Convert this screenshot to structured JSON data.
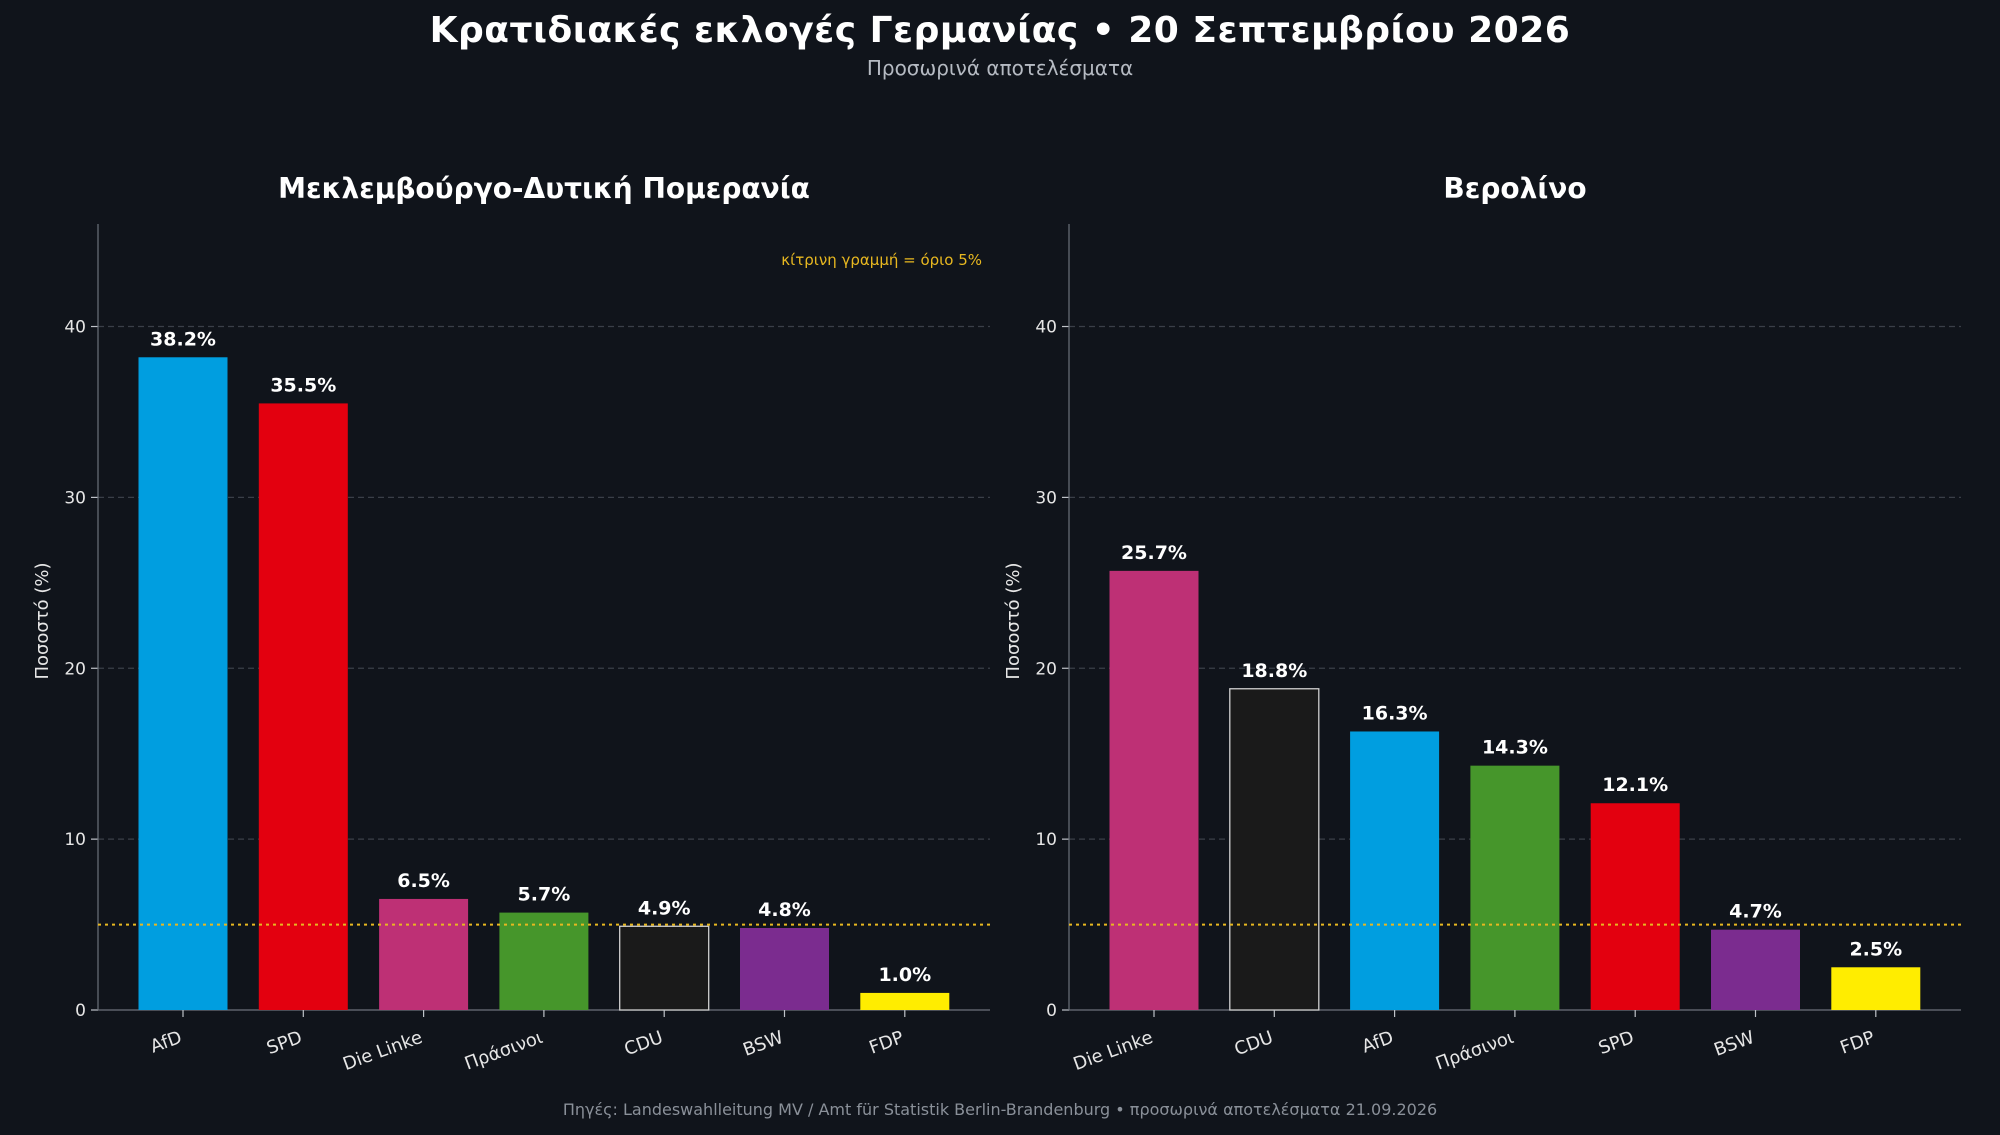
{
  "header": {
    "title": "Κρατιδιακές εκλογές Γερμανίας  •  20 Σεπτεμβρίου 2026",
    "subtitle": "Προσωρινά αποτελέσματα"
  },
  "footer": {
    "source": "Πηγές: Landeswahlleitung MV / Amt für Statistik Berlin-Brandenburg  •  προσωρινά αποτελέσματα 21.09.2026"
  },
  "colors": {
    "AfD": "#009ee0",
    "SPD": "#e3000f",
    "Die Linke": "#be3075",
    "Πράσινοι": "#46962b",
    "CDU": "#1a1a1a",
    "BSW": "#7b2c8f",
    "FDP": "#ffed00",
    "threshold": "#e8b820",
    "grid": "#3a3f48"
  },
  "chart_data": [
    {
      "type": "bar",
      "title": "Μεκλεμβούργο-Δυτική Πομερανία",
      "ylabel": "Ποσοστό (%)",
      "xlabel": "",
      "categories": [
        "AfD",
        "SPD",
        "Die Linke",
        "Πράσινοι",
        "CDU",
        "BSW",
        "FDP"
      ],
      "values": [
        38.2,
        35.5,
        6.5,
        5.7,
        4.9,
        4.8,
        1.0
      ],
      "value_labels": [
        "38.2%",
        "35.5%",
        "6.5%",
        "5.7%",
        "4.9%",
        "4.8%",
        "1.0%"
      ],
      "ylim": [
        0,
        46
      ],
      "yticks": [
        0,
        10,
        20,
        30,
        40
      ],
      "grid": true,
      "threshold": 5,
      "annotation": "κίτρινη γραμμή = όριο 5%"
    },
    {
      "type": "bar",
      "title": "Βερολίνο",
      "ylabel": "Ποσοστό (%)",
      "xlabel": "",
      "categories": [
        "Die Linke",
        "CDU",
        "AfD",
        "Πράσινοι",
        "SPD",
        "BSW",
        "FDP"
      ],
      "values": [
        25.7,
        18.8,
        16.3,
        14.3,
        12.1,
        4.7,
        2.5
      ],
      "value_labels": [
        "25.7%",
        "18.8%",
        "16.3%",
        "14.3%",
        "12.1%",
        "4.7%",
        "2.5%"
      ],
      "ylim": [
        0,
        46
      ],
      "yticks": [
        0,
        10,
        20,
        30,
        40
      ],
      "grid": true,
      "threshold": 5,
      "annotation": ""
    }
  ]
}
